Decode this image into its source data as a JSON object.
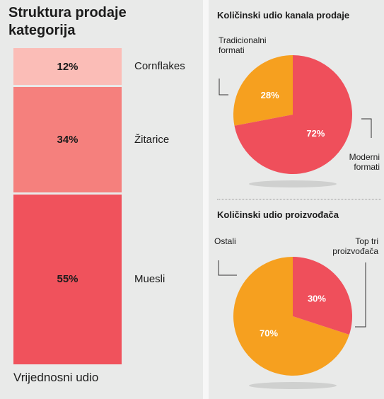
{
  "left": {
    "title_line1": "Struktura prodaje",
    "title_line2": "kategorija",
    "footer": "Vrijednosni udio"
  },
  "colors": {
    "cornflakes": "#fbbdb7",
    "zitarice": "#f5807d",
    "muesli": "#f0525c",
    "red": "#ef4f5b",
    "orange": "#f6a01f",
    "shadow": "#cfd0cf"
  },
  "chart_data": [
    {
      "type": "bar",
      "stacked": true,
      "title": "Struktura prodaje kategorija",
      "xlabel": "Vrijednosni udio",
      "categories": [
        "Cornflakes",
        "Žitarice",
        "Muesli"
      ],
      "values": [
        12,
        34,
        55
      ],
      "value_labels": [
        "12%",
        "34%",
        "55%"
      ]
    },
    {
      "type": "pie",
      "title": "Količinski udio kanala prodaje",
      "labels": [
        "Tradicionalni formati",
        "Moderni formati"
      ],
      "label_lines": [
        [
          "Tradicionalni",
          "formati"
        ],
        [
          "Moderni",
          "formati"
        ]
      ],
      "values": [
        28,
        72
      ],
      "value_labels": [
        "28%",
        "72%"
      ]
    },
    {
      "type": "pie",
      "title": "Količinski udio proizvođača",
      "labels": [
        "Ostali",
        "Top tri proizvođača"
      ],
      "label_lines": [
        [
          "Ostali"
        ],
        [
          "Top tri",
          "proizvođača"
        ]
      ],
      "values": [
        70,
        30
      ],
      "value_labels": [
        "70%",
        "30%"
      ]
    }
  ]
}
